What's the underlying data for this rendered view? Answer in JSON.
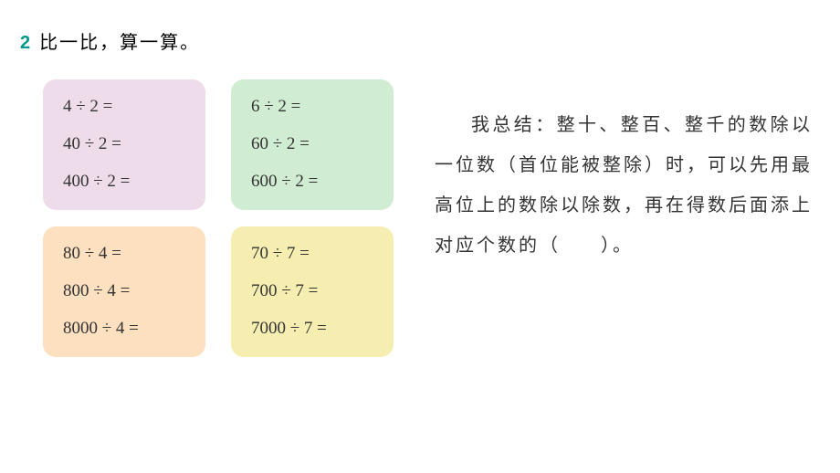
{
  "question_number": "2",
  "question_title": "比一比，算一算。",
  "boxes": [
    {
      "bg_color": "#eedcea",
      "rows": [
        "4 ÷ 2 =",
        "40 ÷ 2 =",
        "400 ÷ 2 ="
      ]
    },
    {
      "bg_color": "#d0ecd2",
      "rows": [
        "6 ÷ 2 =",
        "60 ÷ 2 =",
        "600 ÷ 2 ="
      ]
    },
    {
      "bg_color": "#fce0c0",
      "rows": [
        "80 ÷ 4 =",
        "800 ÷ 4 =",
        "8000 ÷ 4 ="
      ]
    },
    {
      "bg_color": "#f6eeb1",
      "rows": [
        "70 ÷ 7 =",
        "700 ÷ 7 =",
        "7000 ÷ 7 ="
      ]
    }
  ],
  "summary_prefix": "我总结：整十、整百、整千的数除以一位数（首位能被整除）时，可以先用最高位上的数除以除数，再在得数后面添上对应个数的（",
  "summary_suffix": "）。"
}
